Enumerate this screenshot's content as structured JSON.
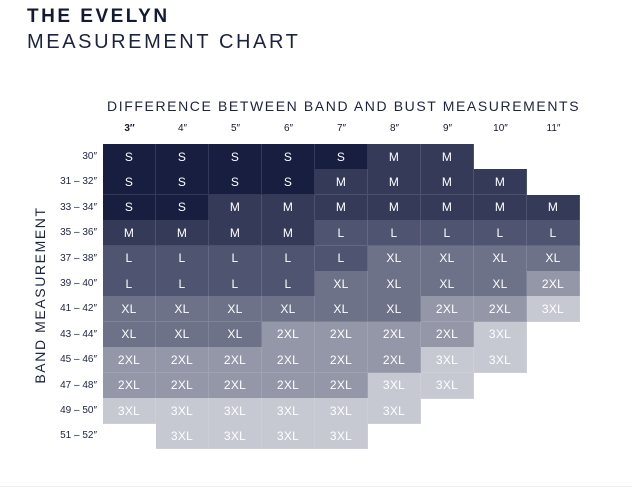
{
  "header": {
    "title": "THE EVELYN",
    "subtitle": "MEASUREMENT CHART"
  },
  "chart": {
    "column_axis_label": "DIFFERENCE BETWEEN BAND AND BUST MEASUREMENTS",
    "row_axis_label": "BAND MEASUREMENT",
    "columns": [
      "3″",
      "4″",
      "5″",
      "6″",
      "7″",
      "8″",
      "9″",
      "10″",
      "11″"
    ],
    "rows": [
      "30″",
      "31 – 32″",
      "33 – 34″",
      "35 – 36″",
      "37 – 38″",
      "39 – 40″",
      "41 – 42″",
      "43 – 44″",
      "45 – 46″",
      "47 – 48″",
      "49 – 50″",
      "51 – 52″"
    ],
    "sizes": [
      [
        "S",
        "S",
        "S",
        "S",
        "S",
        "M",
        "M",
        "",
        ""
      ],
      [
        "S",
        "S",
        "S",
        "S",
        "M",
        "M",
        "M",
        "M",
        ""
      ],
      [
        "S",
        "S",
        "M",
        "M",
        "M",
        "M",
        "M",
        "M",
        "M"
      ],
      [
        "M",
        "M",
        "M",
        "M",
        "L",
        "L",
        "L",
        "L",
        "L"
      ],
      [
        "L",
        "L",
        "L",
        "L",
        "L",
        "XL",
        "XL",
        "XL",
        "XL"
      ],
      [
        "L",
        "L",
        "L",
        "L",
        "XL",
        "XL",
        "XL",
        "XL",
        "2XL"
      ],
      [
        "XL",
        "XL",
        "XL",
        "XL",
        "XL",
        "XL",
        "2XL",
        "2XL",
        "3XL"
      ],
      [
        "XL",
        "XL",
        "XL",
        "2XL",
        "2XL",
        "2XL",
        "2XL",
        "3XL",
        ""
      ],
      [
        "2XL",
        "2XL",
        "2XL",
        "2XL",
        "2XL",
        "2XL",
        "3XL",
        "3XL",
        ""
      ],
      [
        "2XL",
        "2XL",
        "2XL",
        "2XL",
        "2XL",
        "3XL",
        "3XL",
        "",
        ""
      ],
      [
        "3XL",
        "3XL",
        "3XL",
        "3XL",
        "3XL",
        "3XL",
        "",
        "",
        ""
      ],
      [
        "",
        "3XL",
        "3XL",
        "3XL",
        "3XL",
        "",
        "",
        "",
        ""
      ]
    ],
    "size_colors": {
      "S": {
        "bg": "#171e40",
        "fg": "#ffffff"
      },
      "M": {
        "bg": "#343a58",
        "fg": "#ffffff"
      },
      "L": {
        "bg": "#4f5570",
        "fg": "#ffffff"
      },
      "XL": {
        "bg": "#6d7288",
        "fg": "#ffffff"
      },
      "2XL": {
        "bg": "#9397a8",
        "fg": "#ffffff"
      },
      "3XL": {
        "bg": "#c6c8d2",
        "fg": "#ffffff"
      }
    }
  }
}
